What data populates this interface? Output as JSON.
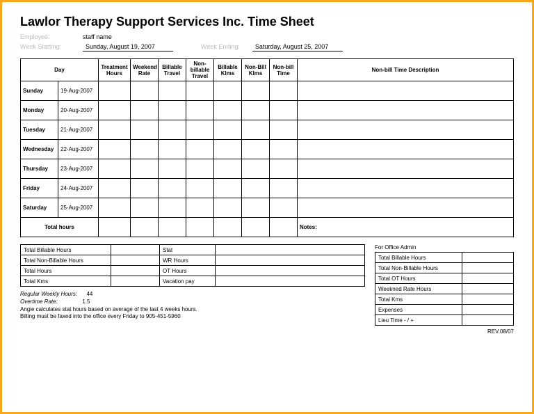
{
  "title": "Lawlor Therapy Support Services Inc. Time Sheet",
  "meta": {
    "employee_label": "Employee:",
    "employee_value": "staff name",
    "week_start_label": "Week Starting:",
    "week_start_value": "Sunday, August 19, 2007",
    "week_end_label": "Week Ending:",
    "week_end_value": "Saturday, August 25, 2007"
  },
  "headers": {
    "day": "Day",
    "treatment": "Treatment Hours",
    "weekend": "Weekend Rate",
    "bill_travel": "Billable Travel",
    "nonbill_travel": "Non-billable Travel",
    "bill_klms": "Billable Klms",
    "nonbill_klms": "Non-Bill Klms",
    "nonbill_time": "Non-bill Time",
    "nonbill_desc": "Non-bill Time Description"
  },
  "rows": [
    {
      "day": "Sunday",
      "date": "19-Aug-2007"
    },
    {
      "day": "Monday",
      "date": "20-Aug-2007"
    },
    {
      "day": "Tuesday",
      "date": "21-Aug-2007"
    },
    {
      "day": "Wednesday",
      "date": "22-Aug-2007"
    },
    {
      "day": "Thursday",
      "date": "23-Aug-2007"
    },
    {
      "day": "Friday",
      "date": "24-Aug-2007"
    },
    {
      "day": "Saturday",
      "date": "25-Aug-2007"
    }
  ],
  "total_hours_label": "Total hours",
  "notes_label": "Notes:",
  "left_summary": {
    "r1": "Total Billable Hours",
    "r2": "Total Non-Billable Hours",
    "r3": "Total Hours",
    "r4": "Total Kms",
    "c1": "Stat",
    "c2": "WR Hours",
    "c3": "OT Hours",
    "c4": "Vacation pay"
  },
  "admin_label": "For Office Admin",
  "right_summary": {
    "r1": "Total Billable Hours",
    "r2": "Total Non-Billable Hours",
    "r3": "Total OT Hours",
    "r4": "Weekned Rate Hours",
    "r5": "Total Kms",
    "r6": "Expenses",
    "r7": "Lieu Time      -           / +"
  },
  "footer": {
    "l1a": "Regular Weekly Hours:",
    "l1b": "44",
    "l2a": "Overtime Rate:",
    "l2b": "1.5",
    "l3": "Angie calculates stat hours based on average of the last 4 weeks hours.",
    "l4": "Billing must be faxed into the office every Friday to 905-451-5960"
  },
  "rev": "REV.08/07"
}
